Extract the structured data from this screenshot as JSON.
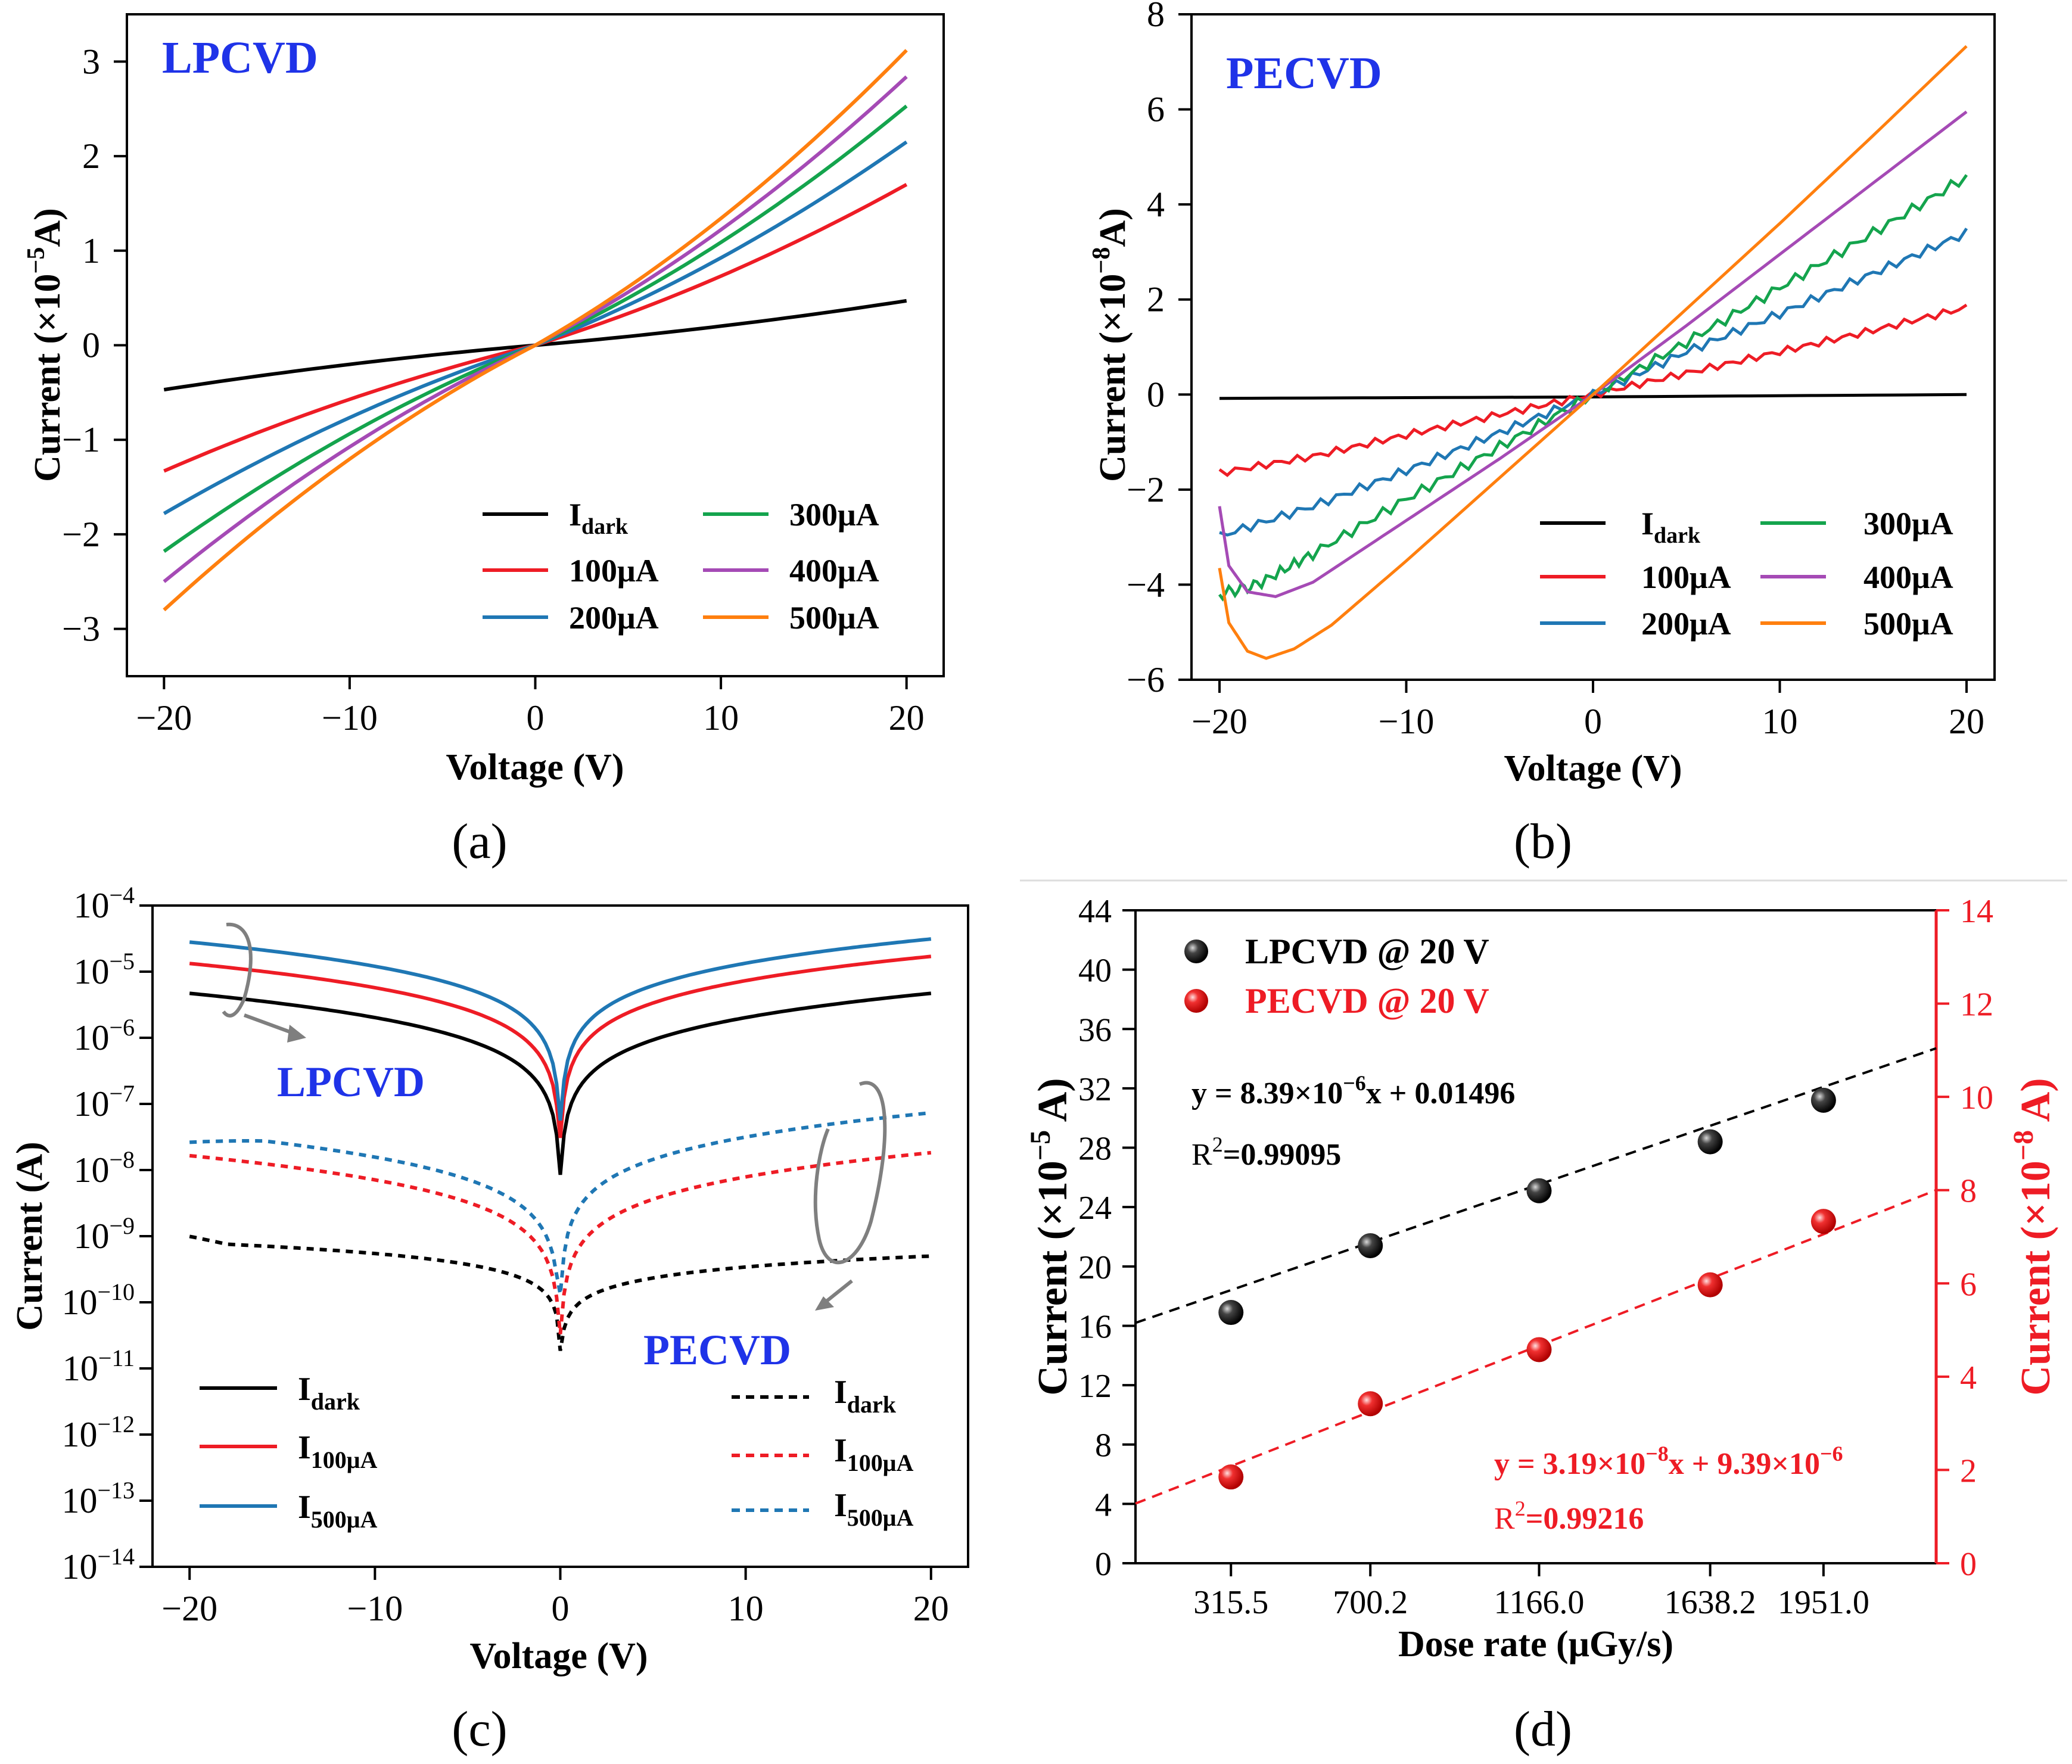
{
  "figure": {
    "panel_labels": [
      "(a)",
      "(b)",
      "(c)",
      "(d)"
    ],
    "legend_sub": {
      "dark": "dark",
      "100": "100μA",
      "500": "500μA"
    }
  },
  "chart_data": [
    {
      "type": "line",
      "title": "LPCVD",
      "xlabel": "Voltage (V)",
      "ylabel_prefix": "Current (×10",
      "ylabel_exp": "−5",
      "ylabel_suffix": "A)",
      "xlim": [
        -22,
        22
      ],
      "ylim": [
        -3.5,
        3.5
      ],
      "xticks": [
        -20,
        -10,
        0,
        10,
        20
      ],
      "xtick_labels": [
        "−20",
        "−10",
        "0",
        "10",
        "20"
      ],
      "yticks": [
        -3,
        -2,
        -1,
        0,
        1,
        2,
        3
      ],
      "ytick_labels": [
        "−3",
        "−2",
        "−1",
        "0",
        "1",
        "2",
        "3"
      ],
      "legend": [
        "I",
        "100μA",
        "200μA",
        "300μA",
        "400μA",
        "500μA"
      ],
      "series": [
        {
          "name": "Idark",
          "color": "#000000",
          "end_neg": -0.47,
          "end_pos": 0.47,
          "curv": 0.0
        },
        {
          "name": "100μA",
          "color": "#ee1c25",
          "end_neg": -1.33,
          "end_pos": 1.7,
          "curv": 0.0
        },
        {
          "name": "200μA",
          "color": "#1f77b4",
          "end_neg": -1.78,
          "end_pos": 2.15,
          "curv": 0.0
        },
        {
          "name": "300μA",
          "color": "#14a44d",
          "end_neg": -2.18,
          "end_pos": 2.53,
          "curv": 0.0
        },
        {
          "name": "400μA",
          "color": "#a54ab5",
          "end_neg": -2.5,
          "end_pos": 2.84,
          "curv": 0.0
        },
        {
          "name": "500μA",
          "color": "#ff7f0e",
          "end_neg": -2.8,
          "end_pos": 3.12,
          "curv": 0.0
        }
      ]
    },
    {
      "type": "line",
      "title": "PECVD",
      "xlabel": "Voltage (V)",
      "ylabel_prefix": "Current (×10",
      "ylabel_exp": "−8",
      "ylabel_suffix": "A)",
      "xlim": [
        -21.5,
        21.5
      ],
      "ylim": [
        -6,
        8
      ],
      "xticks": [
        -20,
        -10,
        0,
        10,
        20
      ],
      "xtick_labels": [
        "−20",
        "−10",
        "0",
        "10",
        "20"
      ],
      "yticks": [
        -6,
        -4,
        -2,
        0,
        2,
        4,
        6,
        8
      ],
      "ytick_labels": [
        "−6",
        "−4",
        "−2",
        "0",
        "2",
        "4",
        "6",
        "8"
      ],
      "legend": [
        "I",
        "100μA",
        "200μA",
        "300μA",
        "400μA",
        "500μA"
      ],
      "series": [
        {
          "name": "Idark",
          "color": "#000000",
          "points": [
            [
              -20,
              -0.08
            ],
            [
              0,
              -0.05
            ],
            [
              20,
              0.0
            ]
          ]
        },
        {
          "name": "100μA",
          "color": "#ee1c25",
          "points": [
            [
              -20,
              -1.65
            ],
            [
              -15,
              -1.3
            ],
            [
              -10,
              -0.85
            ],
            [
              -5,
              -0.42
            ],
            [
              0,
              0
            ],
            [
              5,
              0.45
            ],
            [
              10,
              0.9
            ],
            [
              15,
              1.35
            ],
            [
              20,
              1.83
            ]
          ]
        },
        {
          "name": "200μA",
          "color": "#1f77b4",
          "points": [
            [
              -20,
              -2.98
            ],
            [
              -15,
              -2.35
            ],
            [
              -10,
              -1.6
            ],
            [
              -5,
              -0.8
            ],
            [
              0,
              0
            ],
            [
              5,
              0.9
            ],
            [
              10,
              1.7
            ],
            [
              15,
              2.55
            ],
            [
              20,
              3.4
            ]
          ]
        },
        {
          "name": "300μA",
          "color": "#14a44d",
          "points": [
            [
              -20,
              -4.2
            ],
            [
              -18,
              -4.0
            ],
            [
              -15,
              -3.35
            ],
            [
              -10,
              -2.2
            ],
            [
              -5,
              -1.1
            ],
            [
              0,
              0
            ],
            [
              5,
              1.1
            ],
            [
              10,
              2.25
            ],
            [
              15,
              3.4
            ],
            [
              20,
              4.58
            ]
          ]
        },
        {
          "name": "400μA",
          "color": "#a54ab5",
          "points": [
            [
              -20,
              -2.35
            ],
            [
              -19.5,
              -3.6
            ],
            [
              -18.5,
              -4.15
            ],
            [
              -17,
              -4.25
            ],
            [
              -15,
              -3.95
            ],
            [
              -10,
              -2.65
            ],
            [
              -5,
              -1.35
            ],
            [
              0,
              0
            ],
            [
              5,
              1.45
            ],
            [
              10,
              2.95
            ],
            [
              15,
              4.45
            ],
            [
              20,
              5.95
            ]
          ]
        },
        {
          "name": "500μA",
          "color": "#ff7f0e",
          "points": [
            [
              -20,
              -3.65
            ],
            [
              -19.5,
              -4.8
            ],
            [
              -18.5,
              -5.4
            ],
            [
              -17.5,
              -5.55
            ],
            [
              -16,
              -5.35
            ],
            [
              -14,
              -4.85
            ],
            [
              -10,
              -3.5
            ],
            [
              -5,
              -1.75
            ],
            [
              0,
              0
            ],
            [
              5,
              1.8
            ],
            [
              10,
              3.6
            ],
            [
              15,
              5.45
            ],
            [
              20,
              7.33
            ]
          ]
        }
      ]
    },
    {
      "type": "line",
      "title": "",
      "xlabel": "Voltage (V)",
      "ylabel": "Current (A)",
      "yscale": "log",
      "xlim": [
        -22,
        22
      ],
      "ylim": [
        -14,
        -4
      ],
      "xticks": [
        -20,
        -10,
        0,
        10,
        20
      ],
      "xtick_labels": [
        "−20",
        "−10",
        "0",
        "10",
        "20"
      ],
      "yticks": [
        -14,
        -13,
        -12,
        -11,
        -10,
        -9,
        -8,
        -7,
        -6,
        -5,
        -4
      ],
      "ytick_base": "10",
      "ytick_exps": [
        "−14",
        "−13",
        "−12",
        "−11",
        "−10",
        "−9",
        "−8",
        "−7",
        "−6",
        "−5",
        "−4"
      ],
      "annotations": [
        "LPCVD",
        "PECVD"
      ],
      "legend_left": [
        "I",
        "I",
        "I"
      ],
      "legend_right": [
        "I",
        "I",
        "I"
      ],
      "series": [
        {
          "name": "LPCVD Idark",
          "color": "#000000",
          "style": "solid",
          "end_neg": 4.7e-06,
          "end_pos": 4.7e-06
        },
        {
          "name": "LPCVD I100μA",
          "color": "#ee1c25",
          "style": "solid",
          "end_neg": 1.33e-05,
          "end_pos": 1.7e-05
        },
        {
          "name": "LPCVD I500μA",
          "color": "#1f77b4",
          "style": "solid",
          "end_neg": 2.8e-05,
          "end_pos": 3.12e-05
        },
        {
          "name": "PECVD Idark",
          "color": "#000000",
          "style": "dashed",
          "end_neg": 8e-10,
          "end_pos": 5e-10
        },
        {
          "name": "PECVD I100μA",
          "color": "#ee1c25",
          "style": "dashed",
          "end_neg": 1.65e-08,
          "end_pos": 1.83e-08
        },
        {
          "name": "PECVD I500μA",
          "color": "#1f77b4",
          "style": "dashed",
          "end_neg": 3.65e-08,
          "end_pos": 7.33e-08
        }
      ]
    },
    {
      "type": "scatter",
      "title": "",
      "xlabel": "Dose rate (μGy/s)",
      "ylabel_prefix": "Current (×10",
      "ylabel_exp": "−5",
      "ylabel_suffix": " A)",
      "y2label_prefix": "Current (×10",
      "y2label_exp": "−8",
      "y2label_suffix": " A)",
      "categories": [
        "315.5",
        "700.2",
        "1166.0",
        "1638.2",
        "1951.0"
      ],
      "x": [
        315.5,
        700.2,
        1166.0,
        1638.2,
        1951.0
      ],
      "xlim": [
        52,
        2262
      ],
      "ylim": [
        0,
        44
      ],
      "y2lim": [
        0,
        14
      ],
      "yticks": [
        0,
        4,
        8,
        12,
        16,
        20,
        24,
        28,
        32,
        36,
        40,
        44
      ],
      "ytick_labels": [
        "0",
        "4",
        "8",
        "12",
        "16",
        "20",
        "24",
        "28",
        "32",
        "36",
        "40",
        "44"
      ],
      "y2ticks": [
        0,
        2,
        4,
        6,
        8,
        10,
        12,
        14
      ],
      "y2tick_labels": [
        "0",
        "2",
        "4",
        "6",
        "8",
        "10",
        "12",
        "14"
      ],
      "series": [
        {
          "name": "LPCVD @ 20 V",
          "color": "#000000",
          "axis": "left",
          "values": [
            16.9,
            21.4,
            25.1,
            28.4,
            31.2
          ],
          "fit_start": [
            52,
            16.2
          ],
          "fit_end": [
            2262,
            34.7
          ],
          "equation_prefix": "y = 8.39×10",
          "equation_exp": "−6",
          "equation_suffix": "x + 0.01496",
          "r2_label": "R",
          "r2_value": "=0.99095"
        },
        {
          "name": "PECVD @ 20 V",
          "color": "#ee1c25",
          "axis": "right",
          "values": [
            1.85,
            3.42,
            4.58,
            5.97,
            7.33
          ],
          "fit_start": [
            52,
            1.28
          ],
          "fit_end": [
            2262,
            8.0
          ],
          "equation_prefix": "y = 3.19×10",
          "equation_exp": "−8",
          "equation_suffix": "x + 9.39×10",
          "equation_exp2": "−6",
          "r2_label": "R",
          "r2_value": "=0.99216"
        }
      ]
    }
  ]
}
